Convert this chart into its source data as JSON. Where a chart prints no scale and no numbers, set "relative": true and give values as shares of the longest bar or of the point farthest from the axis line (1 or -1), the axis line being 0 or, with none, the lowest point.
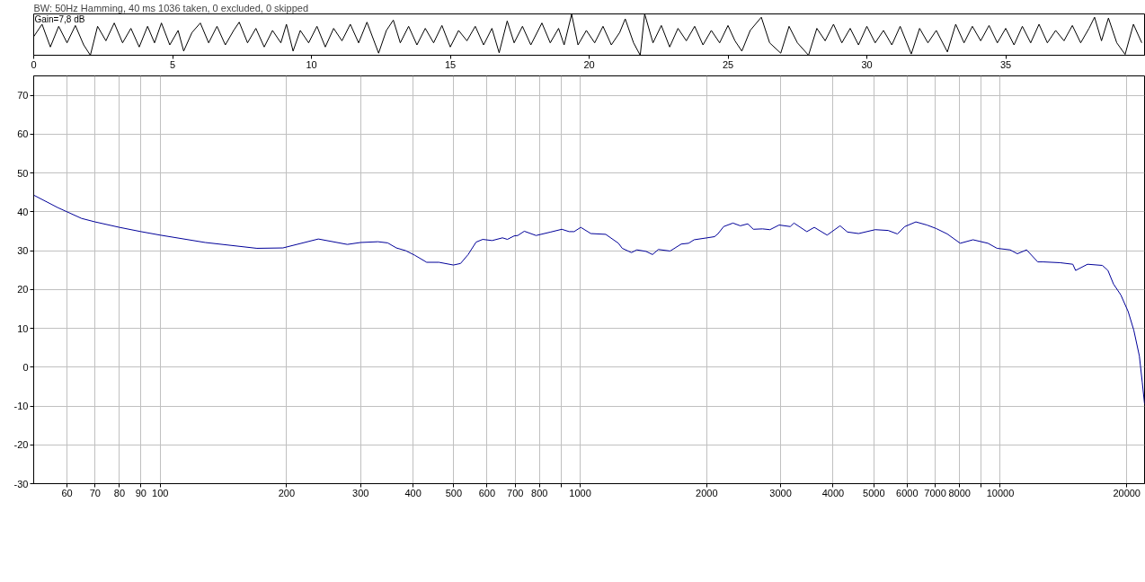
{
  "chart_data": [
    {
      "type": "line",
      "title": "BW: 50Hz Hamming, 40 ms 1036 taken, 0 excluded, 0 skipped",
      "annotations": [
        "Gain=7,8 dB"
      ],
      "relative": true,
      "xlim": [
        0,
        40
      ],
      "xticks": [
        0,
        5,
        10,
        15,
        20,
        25,
        30,
        35
      ],
      "series": [
        {
          "color": "#000000",
          "x": [
            0.0,
            0.3,
            0.6,
            0.9,
            1.2,
            1.5,
            1.8,
            2.04,
            2.3,
            2.6,
            2.9,
            3.2,
            3.5,
            3.8,
            4.1,
            4.35,
            4.6,
            4.9,
            5.2,
            5.4,
            5.7,
            6.0,
            6.3,
            6.6,
            6.9,
            7.2,
            7.4,
            7.7,
            8.0,
            8.3,
            8.6,
            8.9,
            9.1,
            9.34,
            9.6,
            9.9,
            10.2,
            10.5,
            10.8,
            11.1,
            11.4,
            11.7,
            12.0,
            12.42,
            12.7,
            12.95,
            13.2,
            13.5,
            13.8,
            14.1,
            14.4,
            14.7,
            15.0,
            15.3,
            15.6,
            15.9,
            16.2,
            16.5,
            16.76,
            17.05,
            17.3,
            17.6,
            17.9,
            18.3,
            18.6,
            18.9,
            19.1,
            19.37,
            19.6,
            19.9,
            20.2,
            20.5,
            20.8,
            21.1,
            21.3,
            21.6,
            21.84,
            22.0,
            22.3,
            22.6,
            22.9,
            23.2,
            23.5,
            23.8,
            24.1,
            24.4,
            24.7,
            25.0,
            25.25,
            25.5,
            25.8,
            26.2,
            26.5,
            26.9,
            27.2,
            27.5,
            27.9,
            28.2,
            28.5,
            28.8,
            29.1,
            29.4,
            29.7,
            30.0,
            30.3,
            30.6,
            30.9,
            31.2,
            31.6,
            31.9,
            32.2,
            32.5,
            32.9,
            33.2,
            33.5,
            33.8,
            34.1,
            34.4,
            34.7,
            35.0,
            35.3,
            35.6,
            35.9,
            36.2,
            36.5,
            36.8,
            37.1,
            37.4,
            37.7,
            38.0,
            38.2,
            38.45,
            38.7,
            39.0,
            39.3,
            39.6,
            39.9
          ],
          "values": [
            0.45,
            0.75,
            0.2,
            0.7,
            0.3,
            0.72,
            0.25,
            0.0,
            0.7,
            0.35,
            0.78,
            0.3,
            0.65,
            0.2,
            0.7,
            0.3,
            0.78,
            0.25,
            0.6,
            0.1,
            0.55,
            0.78,
            0.3,
            0.7,
            0.25,
            0.6,
            0.8,
            0.3,
            0.65,
            0.2,
            0.6,
            0.3,
            0.75,
            0.1,
            0.6,
            0.3,
            0.7,
            0.2,
            0.65,
            0.35,
            0.75,
            0.3,
            0.8,
            0.05,
            0.6,
            0.85,
            0.3,
            0.7,
            0.25,
            0.65,
            0.3,
            0.72,
            0.2,
            0.6,
            0.35,
            0.7,
            0.25,
            0.65,
            0.06,
            0.83,
            0.3,
            0.7,
            0.25,
            0.78,
            0.3,
            0.65,
            0.25,
            0.99,
            0.25,
            0.6,
            0.3,
            0.7,
            0.25,
            0.55,
            0.88,
            0.3,
            0.0,
            1.0,
            0.3,
            0.72,
            0.2,
            0.65,
            0.35,
            0.7,
            0.25,
            0.6,
            0.3,
            0.72,
            0.35,
            0.1,
            0.6,
            0.92,
            0.3,
            0.05,
            0.7,
            0.3,
            0.0,
            0.65,
            0.35,
            0.75,
            0.3,
            0.65,
            0.25,
            0.7,
            0.3,
            0.6,
            0.25,
            0.7,
            0.03,
            0.65,
            0.3,
            0.6,
            0.08,
            0.75,
            0.3,
            0.7,
            0.35,
            0.72,
            0.3,
            0.65,
            0.25,
            0.7,
            0.3,
            0.75,
            0.3,
            0.6,
            0.35,
            0.72,
            0.3,
            0.65,
            0.92,
            0.35,
            0.9,
            0.3,
            0.02,
            0.75,
            0.3
          ]
        }
      ]
    },
    {
      "type": "line",
      "log": "x",
      "xlim": [
        50,
        22050
      ],
      "ylim": [
        -30,
        75
      ],
      "grid": true,
      "xticks": [
        60,
        70,
        80,
        90,
        100,
        200,
        300,
        400,
        500,
        600,
        700,
        800,
        {
          "value": 900,
          "label": null
        },
        1000,
        2000,
        3000,
        4000,
        5000,
        6000,
        7000,
        8000,
        {
          "value": 9000,
          "label": null
        },
        10000,
        20000
      ],
      "yticks": [
        -30,
        -20,
        -10,
        0,
        10,
        20,
        30,
        40,
        50,
        60,
        70
      ],
      "series": [
        {
          "color": "#000099",
          "x": [
            50,
            57,
            65,
            70,
            80,
            90,
            100,
            128,
            170,
            196,
            238,
            279,
            300,
            330,
            348,
            365,
            384,
            404,
            431,
            461,
            499,
            519,
            541,
            565,
            586,
            617,
            653,
            671,
            696,
            710,
            736,
            785,
            851,
            904,
            941,
            967,
            1003,
            1060,
            1150,
            1233,
            1259,
            1324,
            1364,
            1435,
            1486,
            1535,
            1637,
            1740,
            1811,
            1867,
            2005,
            2088,
            2130,
            2195,
            2310,
            2405,
            2505,
            2583,
            2716,
            2829,
            2975,
            3162,
            3227,
            3463,
            3608,
            3870,
            4155,
            4327,
            4598,
            5036,
            5408,
            5689,
            5926,
            6295,
            6689,
            7035,
            7477,
            8028,
            8612,
            9343,
            9824,
            10550,
            10980,
            11550,
            12280,
            12660,
            13860,
            14880,
            15110,
            16130,
            17500,
            18040,
            18600,
            19360,
            20160,
            20790,
            21430,
            21770,
            22050
          ],
          "values": [
            44.3,
            41.1,
            38.3,
            37.4,
            36.0,
            34.9,
            34.0,
            32.1,
            30.6,
            30.7,
            33.0,
            31.6,
            32.1,
            32.3,
            32.0,
            30.7,
            30.0,
            28.8,
            27.0,
            27.0,
            26.3,
            26.7,
            29.0,
            32.2,
            32.9,
            32.6,
            33.3,
            32.9,
            33.8,
            33.9,
            35.0,
            33.9,
            34.8,
            35.5,
            34.9,
            34.9,
            36.0,
            34.4,
            34.2,
            31.9,
            30.6,
            29.5,
            30.2,
            29.8,
            29.0,
            30.3,
            29.9,
            31.7,
            31.9,
            32.8,
            33.3,
            33.6,
            34.4,
            36.2,
            37.1,
            36.4,
            36.9,
            35.5,
            35.6,
            35.4,
            36.6,
            36.2,
            37.1,
            34.9,
            36.0,
            34.0,
            36.4,
            34.8,
            34.4,
            35.4,
            35.2,
            34.3,
            36.2,
            37.4,
            36.6,
            35.7,
            34.3,
            31.9,
            32.8,
            31.9,
            30.6,
            30.2,
            29.2,
            30.2,
            27.1,
            27.1,
            26.9,
            26.5,
            24.9,
            26.5,
            26.2,
            24.9,
            21.4,
            18.6,
            14.3,
            9.5,
            2.9,
            -3.8,
            -9.5
          ]
        }
      ]
    }
  ]
}
